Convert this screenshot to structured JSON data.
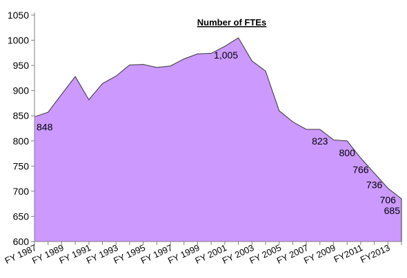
{
  "chart_data": {
    "type": "area",
    "title": "Number of FTEs",
    "xlabel": "",
    "ylabel": "",
    "ylim": [
      600,
      1050
    ],
    "yticks": [
      "600",
      "650",
      "700",
      "750",
      "800",
      "850",
      "900",
      "950",
      "1000",
      "1050"
    ],
    "grid": false,
    "legend": "none",
    "fill_color": "#cc99ff",
    "line_color": "#333333",
    "x": [
      "FY 1987",
      "FY 1988",
      "FY 1989",
      "FY 1990",
      "FY 1991",
      "FY 1992",
      "FY 1993",
      "FY 1994",
      "FY 1995",
      "FY 1996",
      "FY 1997",
      "FY 1998",
      "FY 1999",
      "FY 2000",
      "FY 2001",
      "FY 2002",
      "FY 2003",
      "FY 2004",
      "FY 2005",
      "FY 2006",
      "FY 2007",
      "FY 2008",
      "FY 2009",
      "FY 2010",
      "FY2011",
      "FY 2012",
      "FY2013",
      "FY 2014"
    ],
    "x_tick_labels": [
      "FY 1987",
      "FY 1989",
      "FY 1991",
      "FY 1993",
      "FY 1995",
      "FY 1997",
      "FY 1999",
      "FY 2001",
      "FY 2003",
      "FY 2005",
      "FY 2007",
      "FY 2009",
      "FY2011",
      "FY2013"
    ],
    "values": [
      848,
      857,
      893,
      928,
      882,
      914,
      929,
      951,
      952,
      946,
      949,
      963,
      973,
      974,
      988,
      1005,
      959,
      939,
      860,
      838,
      823,
      823,
      802,
      800,
      766,
      736,
      706,
      685
    ],
    "data_labels": [
      {
        "x": "FY 1987",
        "text": "848"
      },
      {
        "x": "FY 2002",
        "text": "1,005"
      },
      {
        "x": "FY 2008",
        "text": "823"
      },
      {
        "x": "FY 2010",
        "text": "800"
      },
      {
        "x": "FY2011",
        "text": "766"
      },
      {
        "x": "FY 2012",
        "text": "736"
      },
      {
        "x": "FY2013",
        "text": "706"
      },
      {
        "x": "FY 2014",
        "text": "685"
      }
    ]
  }
}
